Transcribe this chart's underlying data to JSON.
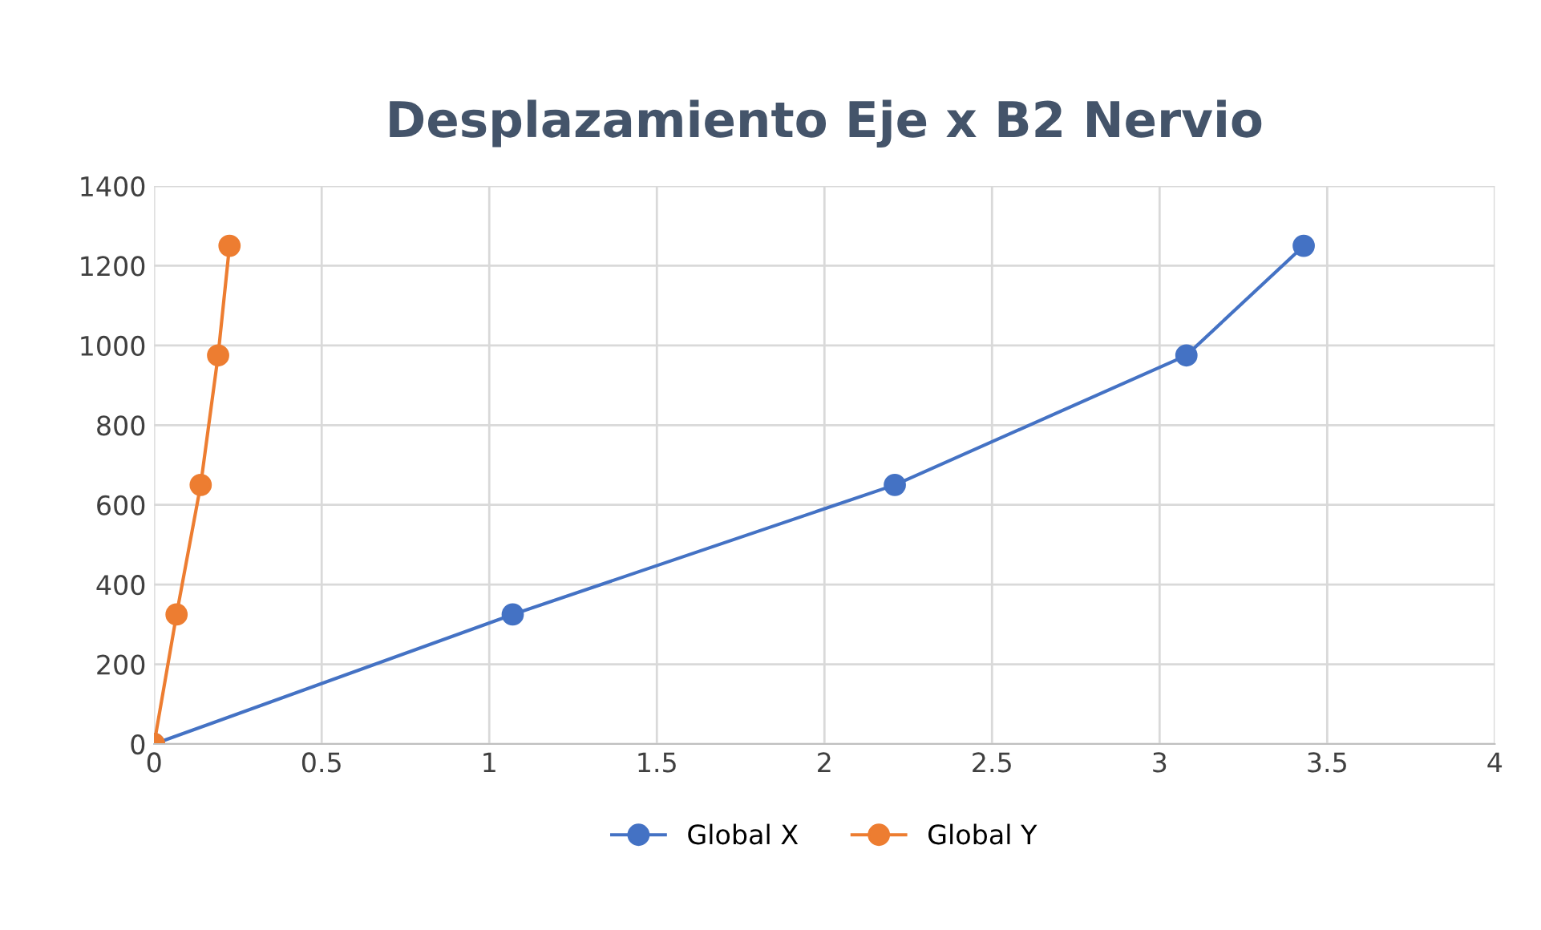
{
  "chart_data": {
    "type": "line",
    "title": "Desplazamiento Eje x B2 Nervio",
    "series": [
      {
        "name": "Global X",
        "color": "#4472c4",
        "x": [
          0,
          1.07,
          2.21,
          3.08,
          3.43
        ],
        "values": [
          0,
          325,
          650,
          975,
          1250
        ]
      },
      {
        "name": "Global Y",
        "color": "#ed7d31",
        "x": [
          0,
          0.067,
          0.139,
          0.191,
          0.225
        ],
        "values": [
          0,
          325,
          650,
          975,
          1250
        ]
      }
    ],
    "xlim": [
      0,
      4
    ],
    "xticks": [
      0,
      0.5,
      1,
      1.5,
      2,
      2.5,
      3,
      3.5,
      4
    ],
    "ylim": [
      0,
      1400
    ],
    "yticks": [
      0,
      200,
      400,
      600,
      800,
      1000,
      1200,
      1400
    ],
    "grid": true,
    "legend": "bottom",
    "marker": "circle",
    "line_style": "solid"
  }
}
